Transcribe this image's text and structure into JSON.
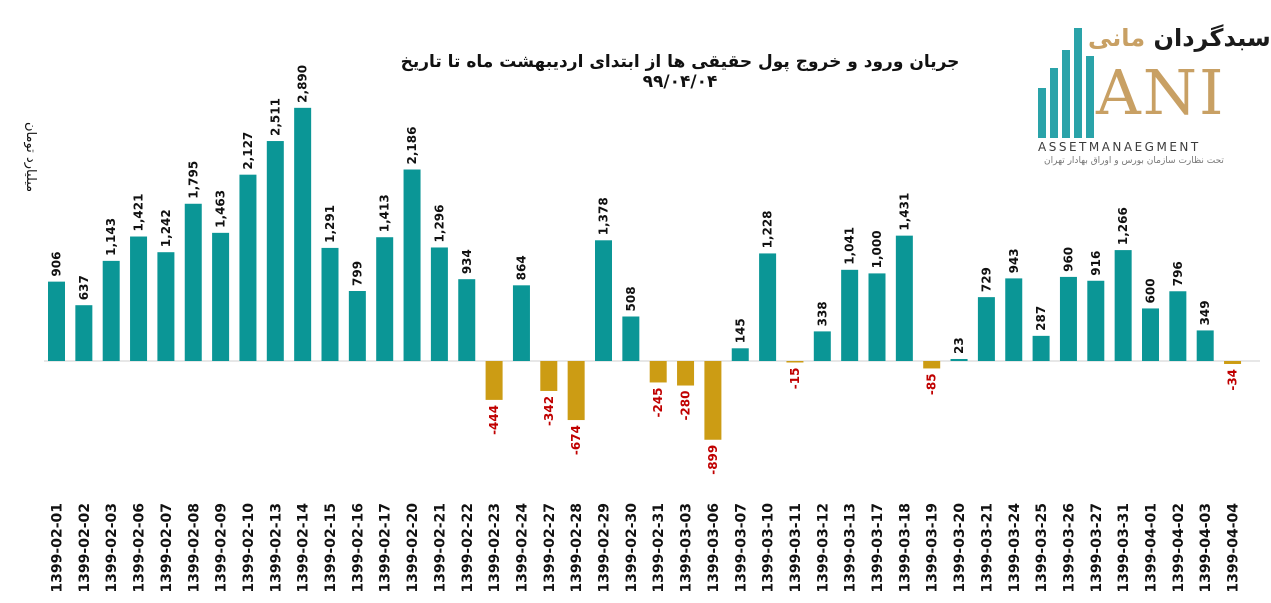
{
  "chart_data": {
    "type": "bar",
    "title": "جریان ورود و خروج پول حقیقی ها از ابتدای اردیبهشت ماه تا تاریخ ۹۹/۰۴/۰۴",
    "ylabel": "میلیارد تومان",
    "categories": [
      "1399-02-01",
      "1399-02-02",
      "1399-02-03",
      "1399-02-06",
      "1399-02-07",
      "1399-02-08",
      "1399-02-09",
      "1399-02-10",
      "1399-02-13",
      "1399-02-14",
      "1399-02-15",
      "1399-02-16",
      "1399-02-17",
      "1399-02-20",
      "1399-02-21",
      "1399-02-22",
      "1399-02-23",
      "1399-02-24",
      "1399-02-27",
      "1399-02-28",
      "1399-02-29",
      "1399-02-30",
      "1399-02-31",
      "1399-03-03",
      "1399-03-06",
      "1399-03-07",
      "1399-03-10",
      "1399-03-11",
      "1399-03-12",
      "1399-03-13",
      "1399-03-17",
      "1399-03-18",
      "1399-03-19",
      "1399-03-20",
      "1399-03-21",
      "1399-03-24",
      "1399-03-25",
      "1399-03-26",
      "1399-03-27",
      "1399-03-31",
      "1399-04-01",
      "1399-04-02",
      "1399-04-03",
      "1399-04-04"
    ],
    "values": [
      906,
      637,
      1143,
      1421,
      1242,
      1795,
      1463,
      2127,
      2511,
      2890,
      1291,
      799,
      1413,
      2186,
      1296,
      934,
      -444,
      864,
      -342,
      -674,
      1378,
      508,
      -245,
      -280,
      -899,
      145,
      1228,
      -15,
      338,
      1041,
      1000,
      1431,
      -85,
      23,
      729,
      943,
      287,
      960,
      916,
      1266,
      600,
      796,
      349,
      -34
    ],
    "labels": [
      "906",
      "637",
      "1,143",
      "1,421",
      "1,242",
      "1,795",
      "1,463",
      "2,127",
      "2,511",
      "2,890",
      "1,291",
      "799",
      "1,413",
      "2,186",
      "1,296",
      "934",
      "-444",
      "864",
      "-342",
      "-674",
      "1,378",
      "508",
      "-245",
      "-280",
      "-899",
      "145",
      "1,228",
      "-15",
      "338",
      "1,041",
      "1,000",
      "1,431",
      "-85",
      "23",
      "729",
      "943",
      "287",
      "960",
      "916",
      "1,266",
      "600",
      "796",
      "349",
      "-34"
    ],
    "colors": {
      "positive": "#0b9696",
      "negative": "#cc9c14",
      "positive_label": "#111111",
      "negative_label": "#c00000"
    },
    "grid": false,
    "legend": "none"
  },
  "logo": {
    "name_fa_dark": "سبدگردان",
    "name_fa_gold": "مانی",
    "name_en": "ANI",
    "subtitle_en": "ASSETMANAEGMENT",
    "subtitle_fa": "تحت نظارت سازمان بورس و اوراق بهادار تهران",
    "colors": {
      "gold": "#c8a064",
      "teal": "#2aa3a9"
    }
  }
}
